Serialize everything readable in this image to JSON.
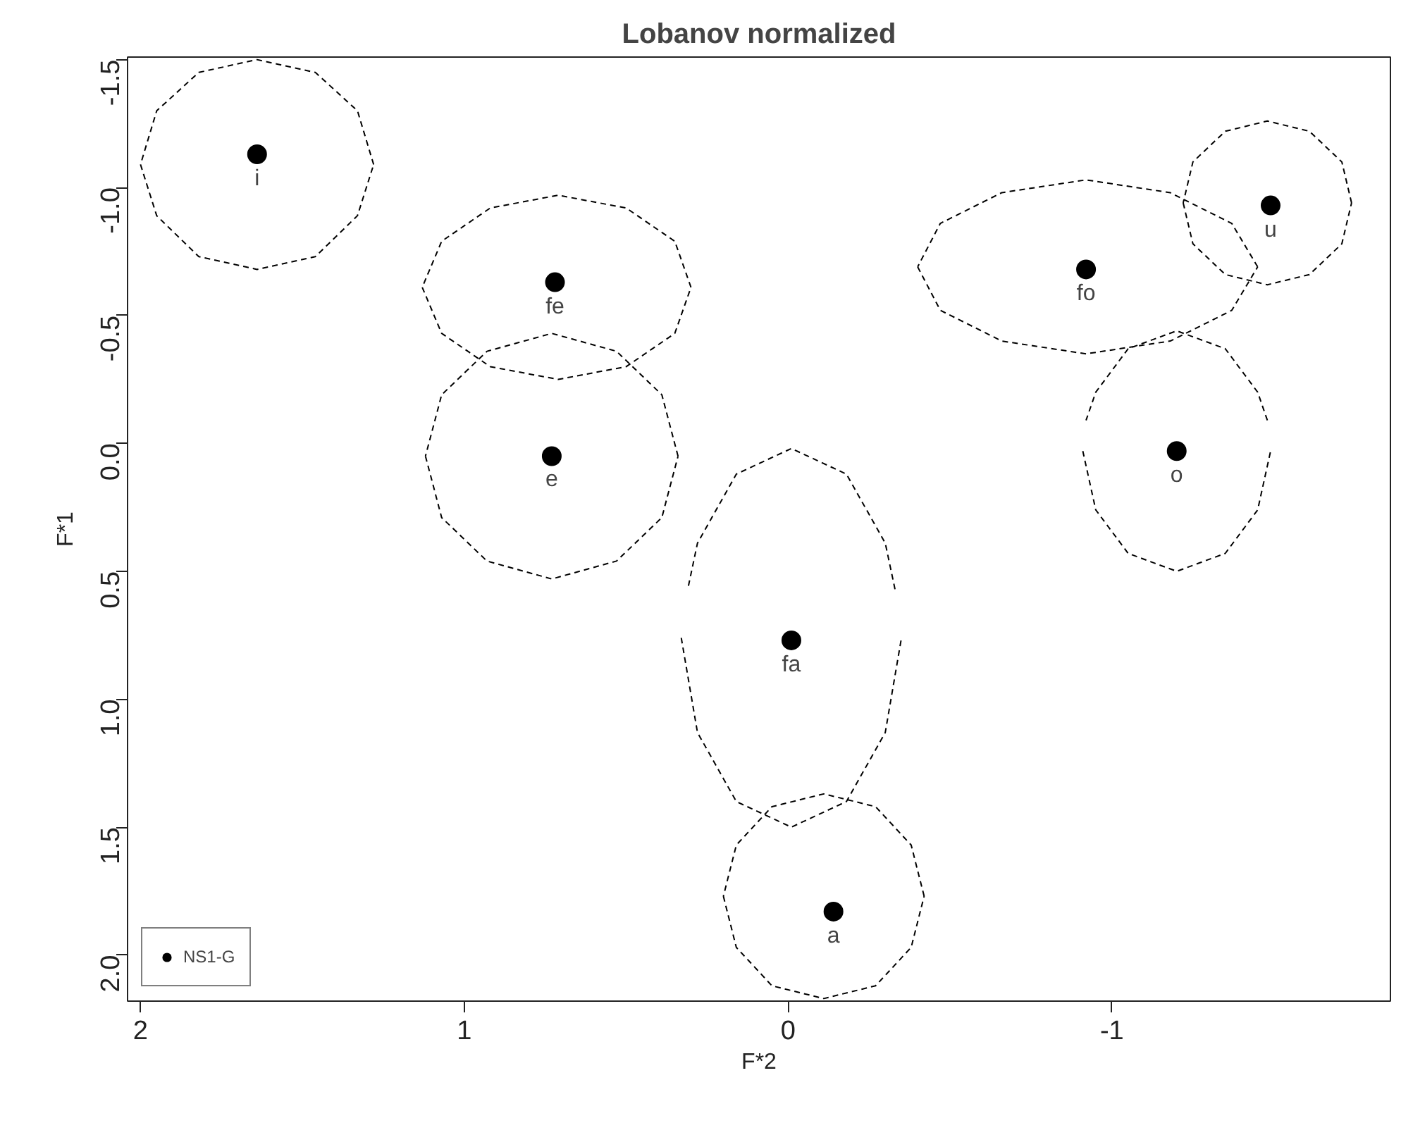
{
  "chart_data": {
    "type": "scatter",
    "title": "Lobanov normalized",
    "xlabel": "F*2",
    "ylabel": "F*1",
    "xlim": [
      2.04,
      -1.86
    ],
    "ylim": [
      2.18,
      -1.51
    ],
    "xticks": [
      2,
      1,
      0,
      -1
    ],
    "yticks": [
      -1.5,
      {
        "value": -1.0,
        "label": "-1.0"
      },
      -0.5,
      {
        "value": 0.0,
        "label": "0.0"
      },
      0.5,
      {
        "value": 1.0,
        "label": "1.0"
      },
      1.5,
      {
        "value": 2.0,
        "label": "2.0"
      }
    ],
    "grid": false,
    "legend": "bottom left",
    "series": [
      {
        "name": "NS1-G",
        "marker": "circle",
        "color": "#000000",
        "x": [
          1.64,
          0.72,
          0.73,
          -0.01,
          -0.14,
          -0.92,
          -1.49,
          -1.2
        ],
        "values": [
          -1.13,
          -0.63,
          0.05,
          0.77,
          1.83,
          -0.68,
          -0.93,
          0.03
        ]
      },
      {
        "type": "line",
        "line_style": "dashed",
        "color": "#000000",
        "x": [
          2.0,
          1.95,
          1.82,
          1.64,
          1.46,
          1.33,
          1.28
        ],
        "values": [
          -1.09,
          -0.89,
          -0.73,
          -0.68,
          -0.73,
          -0.89,
          -1.09
        ]
      },
      {
        "type": "line",
        "line_style": "dashed",
        "color": "#000000",
        "x": [
          1.28,
          1.33,
          1.46,
          1.64,
          1.82,
          1.95,
          2.0
        ],
        "values": [
          -1.09,
          -1.3,
          -1.45,
          -1.5,
          -1.45,
          -1.3,
          -1.09
        ]
      },
      {
        "type": "line",
        "line_style": "dashed",
        "color": "#000000",
        "x": [
          1.13,
          1.07,
          0.92,
          0.71,
          0.5,
          0.35,
          0.3
        ],
        "values": [
          -0.61,
          -0.43,
          -0.3,
          -0.25,
          -0.3,
          -0.43,
          -0.61
        ]
      },
      {
        "type": "line",
        "line_style": "dashed",
        "color": "#000000",
        "x": [
          0.3,
          0.35,
          0.5,
          0.71,
          0.92,
          1.07,
          1.13
        ],
        "values": [
          -0.61,
          -0.79,
          -0.92,
          -0.97,
          -0.92,
          -0.79,
          -0.61
        ]
      },
      {
        "type": "line",
        "line_style": "dashed",
        "color": "#000000",
        "x": [
          1.12,
          1.07,
          0.93,
          0.73,
          0.53,
          0.39,
          0.34
        ],
        "values": [
          0.05,
          0.29,
          0.46,
          0.53,
          0.46,
          0.29,
          0.05
        ]
      },
      {
        "type": "line",
        "line_style": "dashed",
        "color": "#000000",
        "x": [
          0.34,
          0.39,
          0.53,
          0.73,
          0.93,
          1.07,
          1.12
        ],
        "values": [
          0.05,
          -0.19,
          -0.36,
          -0.43,
          -0.36,
          -0.19,
          0.05
        ]
      },
      {
        "type": "line",
        "line_style": "dashed",
        "color": "#000000",
        "x": [
          0.33,
          0.28,
          0.16,
          -0.01,
          -0.18,
          -0.3,
          -0.35
        ],
        "values": [
          0.76,
          1.13,
          1.4,
          1.5,
          1.4,
          1.13,
          0.76
        ]
      },
      {
        "type": "line",
        "line_style": "dashed",
        "color": "#000000",
        "x": [
          -0.33,
          -0.3,
          -0.18,
          -0.01,
          0.16,
          0.28,
          0.31
        ],
        "values": [
          0.57,
          0.39,
          0.12,
          0.02,
          0.12,
          0.39,
          0.57
        ]
      },
      {
        "type": "line",
        "line_style": "dashed",
        "color": "#000000",
        "x": [
          0.2,
          0.16,
          0.05,
          -0.11,
          -0.27,
          -0.38,
          -0.42
        ],
        "values": [
          1.77,
          1.97,
          2.12,
          2.17,
          2.12,
          1.97,
          1.77
        ]
      },
      {
        "type": "line",
        "line_style": "dashed",
        "color": "#000000",
        "x": [
          -0.42,
          -0.38,
          -0.27,
          -0.11,
          0.05,
          0.16,
          0.2
        ],
        "values": [
          1.77,
          1.57,
          1.42,
          1.37,
          1.42,
          1.57,
          1.77
        ]
      },
      {
        "type": "line",
        "line_style": "dashed",
        "color": "#000000",
        "x": [
          -0.4,
          -0.47,
          -0.66,
          -0.92,
          -1.18,
          -1.37,
          -1.45
        ],
        "values": [
          -0.69,
          -0.52,
          -0.4,
          -0.35,
          -0.4,
          -0.52,
          -0.69
        ]
      },
      {
        "type": "line",
        "line_style": "dashed",
        "color": "#000000",
        "x": [
          -1.45,
          -1.37,
          -1.18,
          -0.92,
          -0.66,
          -0.47,
          -0.4
        ],
        "values": [
          -0.69,
          -0.86,
          -0.98,
          -1.03,
          -0.98,
          -0.86,
          -0.69
        ]
      },
      {
        "type": "line",
        "line_style": "dashed",
        "color": "#000000",
        "x": [
          -1.22,
          -1.25,
          -1.35,
          -1.48,
          -1.61,
          -1.71,
          -1.74
        ],
        "values": [
          -0.94,
          -0.78,
          -0.66,
          -0.62,
          -0.66,
          -0.78,
          -0.94
        ]
      },
      {
        "type": "line",
        "line_style": "dashed",
        "color": "#000000",
        "x": [
          -1.74,
          -1.71,
          -1.61,
          -1.48,
          -1.35,
          -1.25,
          -1.22
        ],
        "values": [
          -0.94,
          -1.1,
          -1.22,
          -1.26,
          -1.22,
          -1.1,
          -0.94
        ]
      },
      {
        "type": "line",
        "line_style": "dashed",
        "color": "#000000",
        "x": [
          -0.91,
          -0.95,
          -1.05,
          -1.2,
          -1.35,
          -1.45,
          -1.49
        ],
        "values": [
          0.03,
          0.26,
          0.43,
          0.5,
          0.43,
          0.26,
          0.03
        ]
      },
      {
        "type": "line",
        "line_style": "dashed",
        "color": "#000000",
        "x": [
          -1.48,
          -1.45,
          -1.35,
          -1.2,
          -1.05,
          -0.95,
          -0.92
        ],
        "values": [
          -0.09,
          -0.2,
          -0.37,
          -0.44,
          -0.37,
          -0.2,
          -0.09
        ]
      }
    ],
    "annotations": [
      {
        "text": "i",
        "x": 1.64,
        "y": -1.13
      },
      {
        "text": "fe",
        "x": 0.72,
        "y": -0.63
      },
      {
        "text": "e",
        "x": 0.73,
        "y": 0.05
      },
      {
        "text": "fa",
        "x": -0.01,
        "y": 0.77
      },
      {
        "text": "a",
        "x": -0.14,
        "y": 1.83
      },
      {
        "text": "fo",
        "x": -0.92,
        "y": -0.68
      },
      {
        "text": "u",
        "x": -1.49,
        "y": -0.93
      },
      {
        "text": "o",
        "x": -1.2,
        "y": 0.03
      }
    ]
  }
}
